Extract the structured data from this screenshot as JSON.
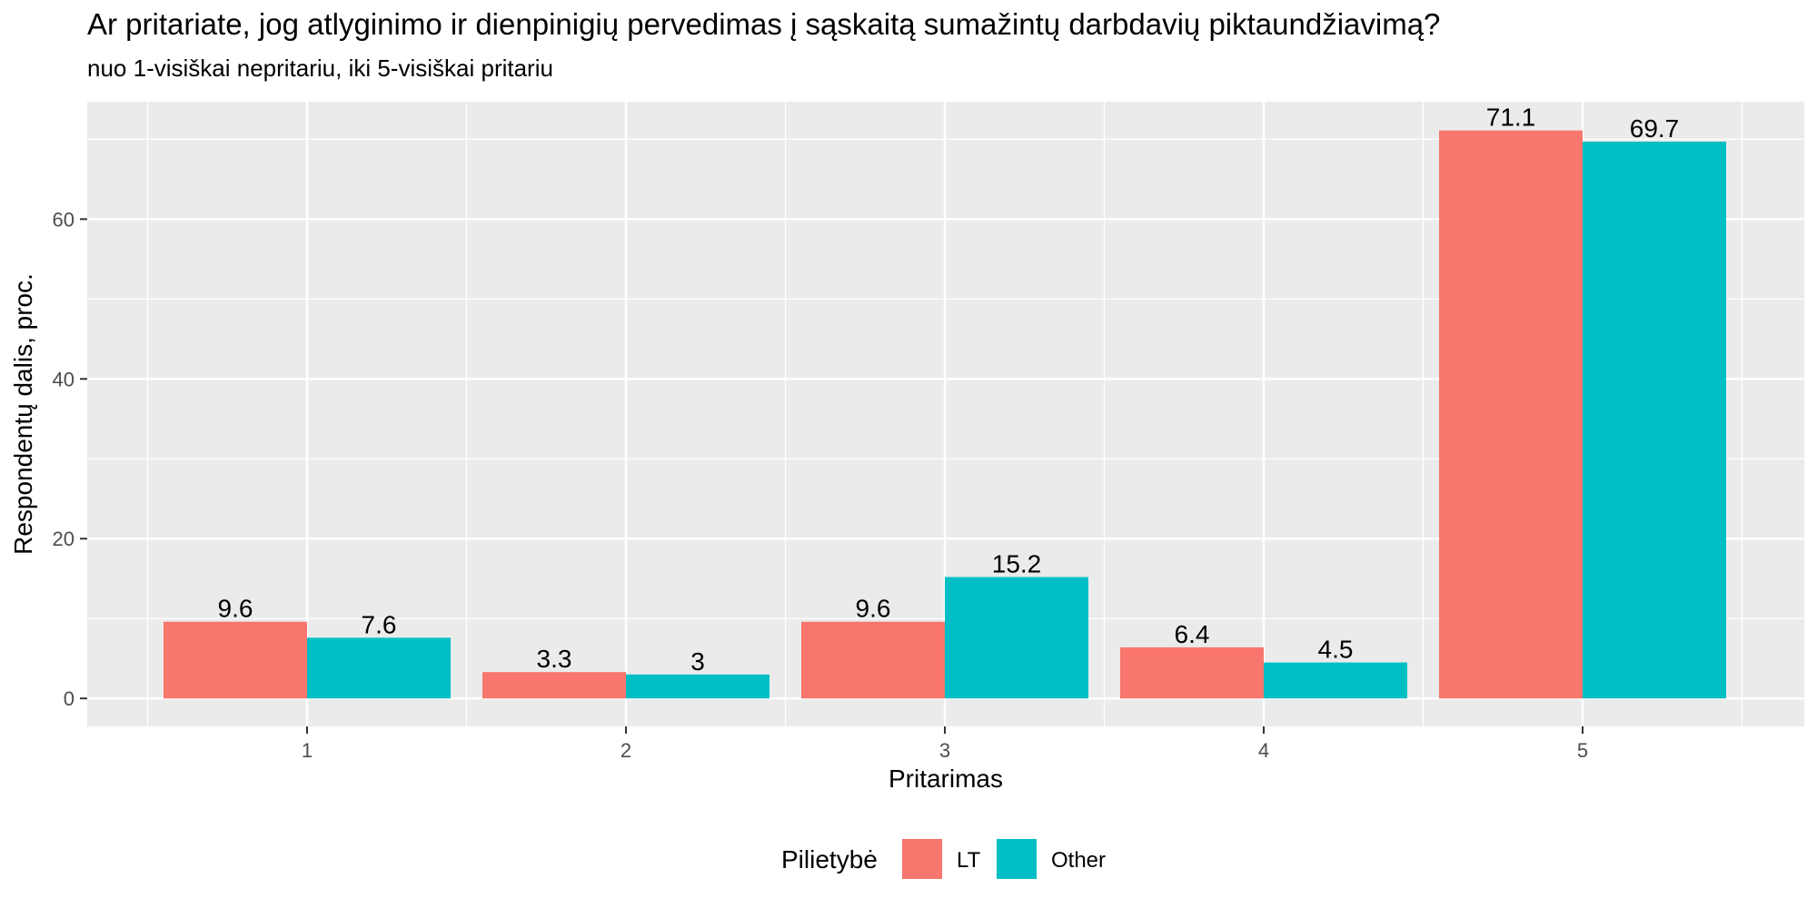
{
  "chart_data": {
    "type": "bar",
    "title": "Ar pritariate, jog atlyginimo ir dienpinigių pervedimas į sąskaitą sumažintų darbdavių piktaundžiavimą?",
    "subtitle": "nuo 1-visiškai nepritariu, iki 5-visiškai pritariu",
    "xlabel": "Pritarimas",
    "ylabel": "Respondentų dalis, proc.",
    "categories": [
      "1",
      "2",
      "3",
      "4",
      "5"
    ],
    "series": [
      {
        "name": "LT",
        "color": "#F8766D",
        "values": [
          9.6,
          3.3,
          9.6,
          6.4,
          71.1
        ],
        "labels": [
          "9.6",
          "3.3",
          "9.6",
          "6.4",
          "71.1"
        ]
      },
      {
        "name": "Other",
        "color": "#00BFC4",
        "values": [
          7.6,
          3,
          15.2,
          4.5,
          69.7
        ],
        "labels": [
          "7.6",
          "3",
          "15.2",
          "4.5",
          "69.7"
        ]
      }
    ],
    "yticks": [
      0,
      20,
      40,
      60
    ],
    "ylim": [
      -3.5,
      74.7
    ],
    "grid": true,
    "legend": {
      "title": "Pilietybė",
      "position": "bottom"
    }
  }
}
